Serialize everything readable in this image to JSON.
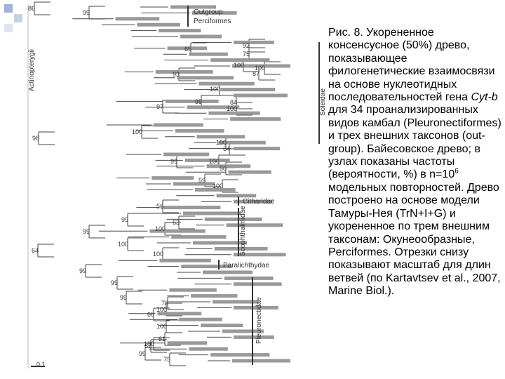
{
  "tree": {
    "support_values": [
      86,
      99,
      65,
      92,
      75,
      100,
      93,
      100,
      87,
      100,
      97,
      99,
      84,
      100,
      100,
      98,
      100,
      64,
      99,
      100,
      50,
      59,
      100,
      56,
      99,
      63,
      99,
      100,
      100,
      100,
      64,
      99,
      99,
      99,
      78,
      100,
      66,
      100,
      61,
      100,
      67,
      99,
      75
    ],
    "groups": {
      "outgroup": "Outgroup",
      "perciformes": "Perciformes",
      "soleidae": "Soleidae",
      "citharidae": "Citharidae",
      "scophthalmidae": "Scophthalmidae",
      "paralichthydae": "Paralichthydae",
      "pleuronectidae": "Pleuronectidae",
      "root": "Actinopterygii"
    },
    "scale": "0.1"
  },
  "caption": {
    "part1": "Рис. 8. Укорененное консенсусное (50%) древо, показывающее филогенетические взаимосвязи на основе нуклеотидных последовательностей гена ",
    "gene": "Cyt-b",
    "part2": " для 34 проанализированных видов камбал (Pleuronectiformes) и трех внешних таксонов (out-group). Байесовское древо; в узлах показаны частоты (вероятности, %) в n=10",
    "exponent": "6",
    "part3": " модельных повторностей. Древо построено на основе модели Тамуры-Нея (TrN+I+G) и укорененное по трем внешним таксонам: Окунеообразные, Perciformes. Отрезки снизу показывают масштаб для длин ветвей (по Kartavtsev et al., 2007, Marine Biol.)."
  }
}
